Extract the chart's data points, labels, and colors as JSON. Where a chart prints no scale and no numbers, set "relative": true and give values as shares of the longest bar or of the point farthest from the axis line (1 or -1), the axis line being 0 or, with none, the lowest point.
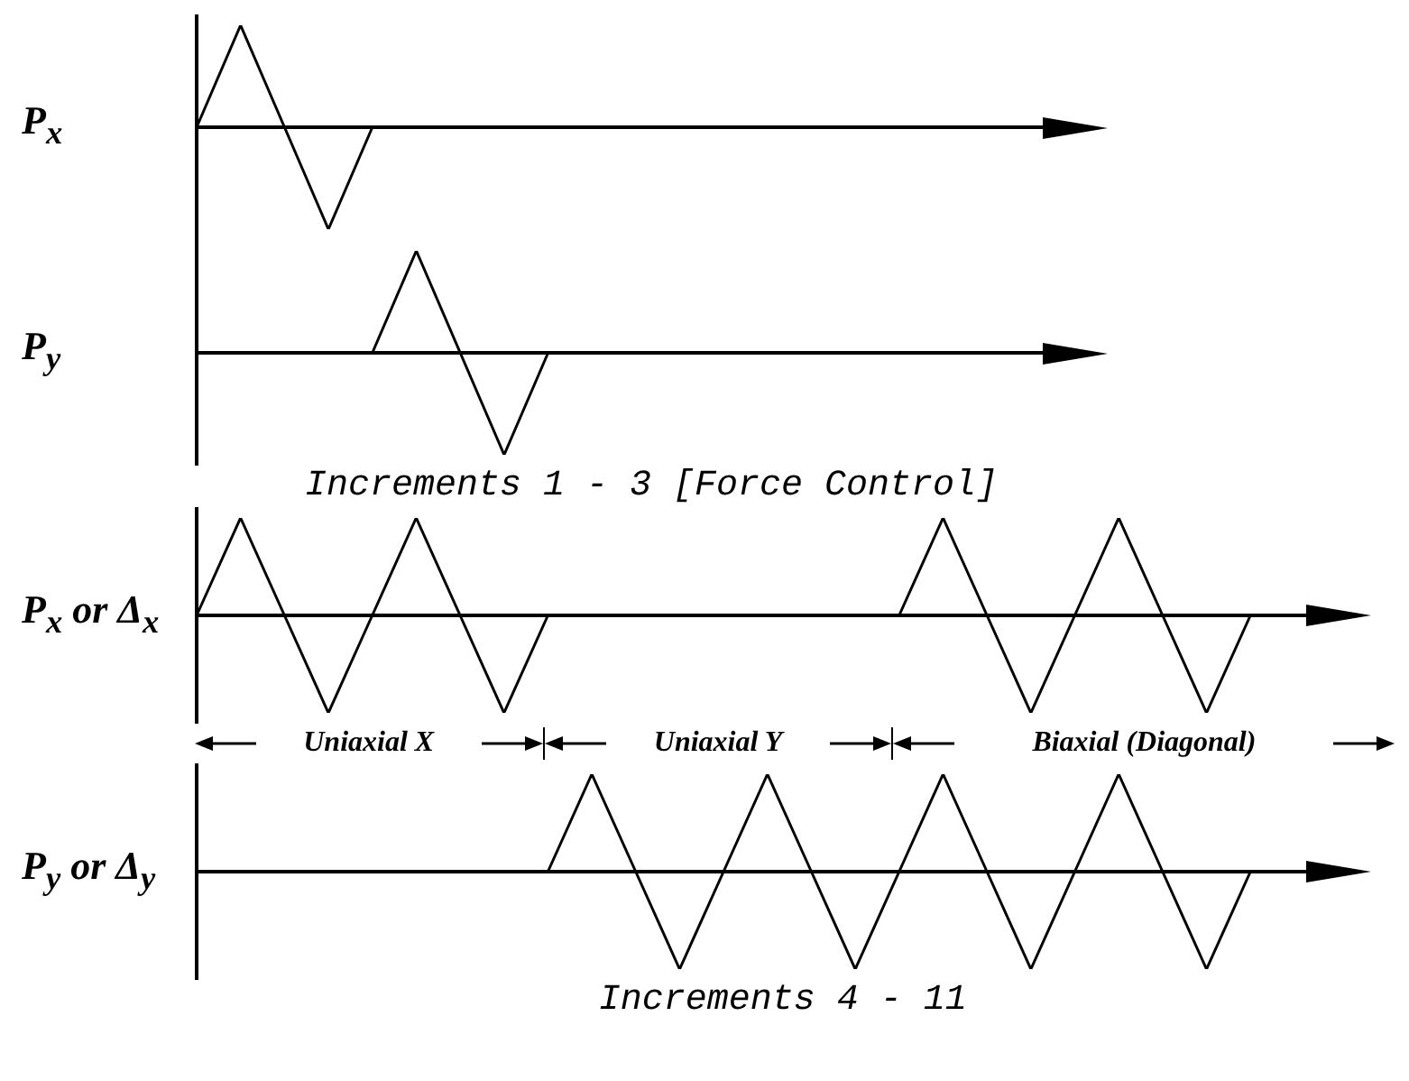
{
  "chart_data": [
    {
      "type": "line",
      "ylabel": "P$_{x}$",
      "relative": true,
      "marker": "none",
      "categories": [
        null,
        null,
        null,
        null,
        null,
        null,
        null,
        null,
        null,
        null,
        null,
        null,
        null,
        null,
        null,
        null,
        null,
        null,
        null,
        null,
        null
      ],
      "series": [
        {
          "color": "#000000",
          "values": [
            0,
            1,
            0,
            -1,
            0,
            null,
            null,
            null,
            null,
            null,
            null,
            null,
            null,
            null,
            null,
            null,
            null,
            null,
            null,
            null,
            null
          ]
        }
      ]
    },
    {
      "type": "line",
      "ylabel": "P$_{y}$",
      "xlabel": "Increments 1 - 3 [Force Control]",
      "relative": true,
      "marker": "none",
      "categories": [
        null,
        null,
        null,
        null,
        null,
        null,
        null,
        null,
        null,
        null,
        null,
        null,
        null,
        null,
        null,
        null,
        null,
        null,
        null,
        null,
        null
      ],
      "series": [
        {
          "color": "#000000",
          "values": [
            null,
            null,
            null,
            null,
            0,
            1,
            0,
            -1,
            0,
            null,
            null,
            null,
            null,
            null,
            null,
            null,
            null,
            null,
            null,
            null,
            null
          ]
        }
      ]
    },
    {
      "type": "line",
      "ylabel": "P$_{x}$ or Δ$_{x}$",
      "relative": true,
      "marker": "none",
      "annotations": [
        "Uniaxial X",
        "Uniaxial Y",
        "Biaxial (Diagonal)"
      ],
      "categories": [
        null,
        null,
        null,
        null,
        null,
        null,
        null,
        null,
        null,
        null,
        null,
        null,
        null,
        null,
        null,
        null,
        null,
        null,
        null,
        null,
        null,
        null,
        null,
        null,
        null,
        null,
        null
      ],
      "series": [
        {
          "color": "#000000",
          "values": [
            0,
            1,
            0,
            -1,
            0,
            1,
            0,
            -1,
            0,
            null,
            null,
            null,
            null,
            null,
            null,
            null,
            null,
            null,
            null,
            null,
            null,
            null,
            null,
            null,
            null,
            null,
            null
          ]
        },
        {
          "color": "#000000",
          "values": [
            null,
            null,
            null,
            null,
            null,
            null,
            null,
            null,
            null,
            null,
            null,
            null,
            null,
            null,
            null,
            null,
            0,
            1,
            0,
            -1,
            0,
            1,
            0,
            -1,
            0,
            null,
            null
          ]
        }
      ]
    },
    {
      "type": "line",
      "ylabel": "P$_{y}$ or Δ$_{y}$",
      "xlabel": "Increments 4 - 11",
      "relative": true,
      "marker": "none",
      "categories": [
        null,
        null,
        null,
        null,
        null,
        null,
        null,
        null,
        null,
        null,
        null,
        null,
        null,
        null,
        null,
        null,
        null,
        null,
        null,
        null,
        null,
        null,
        null,
        null,
        null,
        null,
        null
      ],
      "series": [
        {
          "color": "#000000",
          "values": [
            null,
            null,
            null,
            null,
            null,
            null,
            null,
            null,
            0,
            1,
            0,
            -1,
            0,
            1,
            0,
            -1,
            0,
            1,
            0,
            -1,
            0,
            1,
            0,
            -1,
            0,
            null,
            null
          ]
        }
      ]
    }
  ]
}
